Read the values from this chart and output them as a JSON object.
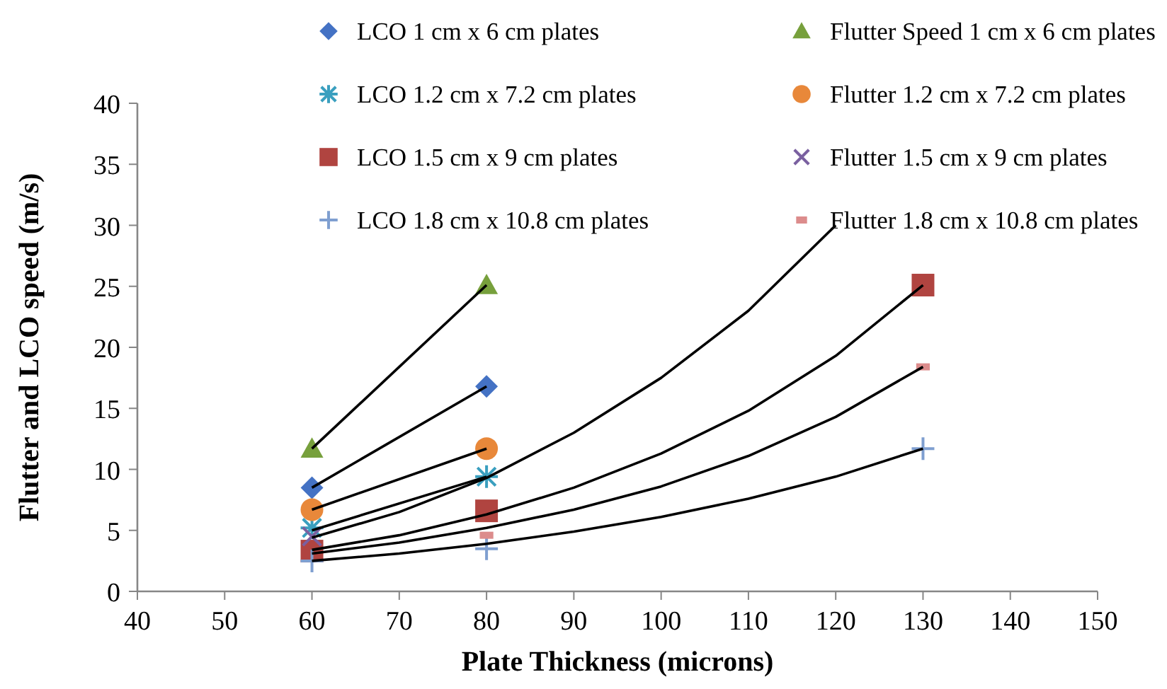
{
  "chart_data": {
    "type": "scatter",
    "xlabel": "Plate Thickness (microns)",
    "ylabel": "Flutter and LCO speed (m/s)",
    "xlim": [
      40,
      150
    ],
    "xticks": [
      40,
      50,
      60,
      70,
      80,
      90,
      100,
      110,
      120,
      130,
      140,
      150
    ],
    "ylim": [
      0,
      40
    ],
    "yticks": [
      0,
      5,
      10,
      15,
      20,
      25,
      30,
      35,
      40
    ],
    "grid": false,
    "legend": "top",
    "x": [
      60,
      80,
      130
    ],
    "series": [
      {
        "name": "LCO 1 cm x 6 cm plates",
        "color": "#4472c4",
        "marker": "diamond",
        "values": [
          8.5,
          16.8,
          null
        ]
      },
      {
        "name": "Flutter Speed 1 cm x 6 cm plates",
        "color": "#77a03c",
        "marker": "triangle",
        "values": [
          11.7,
          25.1,
          null
        ]
      },
      {
        "name": "LCO 1.2 cm x 7.2 cm plates",
        "color": "#3a9fbf",
        "marker": "cross",
        "values": [
          5.2,
          9.4,
          null
        ]
      },
      {
        "name": "Flutter 1.2 cm x 7.2 cm plates",
        "color": "#e8883a",
        "marker": "circle",
        "values": [
          6.7,
          11.7,
          null
        ]
      },
      {
        "name": "LCO 1.5 cm x 9 cm plates",
        "color": "#b04440",
        "marker": "square",
        "values": [
          3.3,
          6.6,
          25.1
        ]
      },
      {
        "name": "Flutter 1.5 cm x 9 cm plates",
        "color": "#7a60a0",
        "marker": "cross",
        "values": [
          4.5,
          null,
          null
        ]
      },
      {
        "name": "LCO 1.8 cm x 10.8 cm plates",
        "color": "#7f9fd0",
        "marker": "cross",
        "values": [
          2.5,
          3.5,
          11.7
        ]
      },
      {
        "name": "Flutter 1.8 cm x 10.8 cm plates",
        "color": "#dc8c8c",
        "marker": "square",
        "values": [
          null,
          4.6,
          18.4
        ]
      },
      {
        "type": "line",
        "color": "#000000",
        "marker": "none",
        "x": [
          60,
          80
        ],
        "values": [
          11.7,
          25.1
        ]
      },
      {
        "type": "line",
        "color": "#000000",
        "marker": "none",
        "x": [
          60,
          80
        ],
        "values": [
          8.5,
          16.8
        ]
      },
      {
        "type": "line",
        "color": "#000000",
        "marker": "none",
        "x": [
          60,
          80
        ],
        "values": [
          6.7,
          11.7
        ]
      },
      {
        "type": "line",
        "color": "#000000",
        "marker": "none",
        "x": [
          60,
          80
        ],
        "values": [
          5.0,
          9.4
        ]
      },
      {
        "type": "line",
        "color": "#000000",
        "marker": "none",
        "x": [
          60,
          70,
          80,
          90,
          100,
          110,
          120
        ],
        "values": [
          4.4,
          6.5,
          9.3,
          13,
          17.5,
          23,
          30
        ]
      },
      {
        "type": "line",
        "color": "#000000",
        "marker": "none",
        "x": [
          60,
          70,
          80,
          90,
          100,
          110,
          120,
          130
        ],
        "values": [
          3.4,
          4.6,
          6.3,
          8.5,
          11.3,
          14.8,
          19.3,
          25.1
        ]
      },
      {
        "type": "line",
        "color": "#000000",
        "marker": "none",
        "x": [
          60,
          70,
          80,
          90,
          100,
          110,
          120,
          130
        ],
        "values": [
          3.1,
          4.0,
          5.2,
          6.7,
          8.6,
          11.1,
          14.3,
          18.4
        ]
      },
      {
        "type": "line",
        "color": "#000000",
        "marker": "none",
        "x": [
          60,
          70,
          80,
          90,
          100,
          110,
          120,
          130
        ],
        "values": [
          2.5,
          3.1,
          3.9,
          4.9,
          6.1,
          7.6,
          9.4,
          11.7
        ]
      }
    ]
  }
}
